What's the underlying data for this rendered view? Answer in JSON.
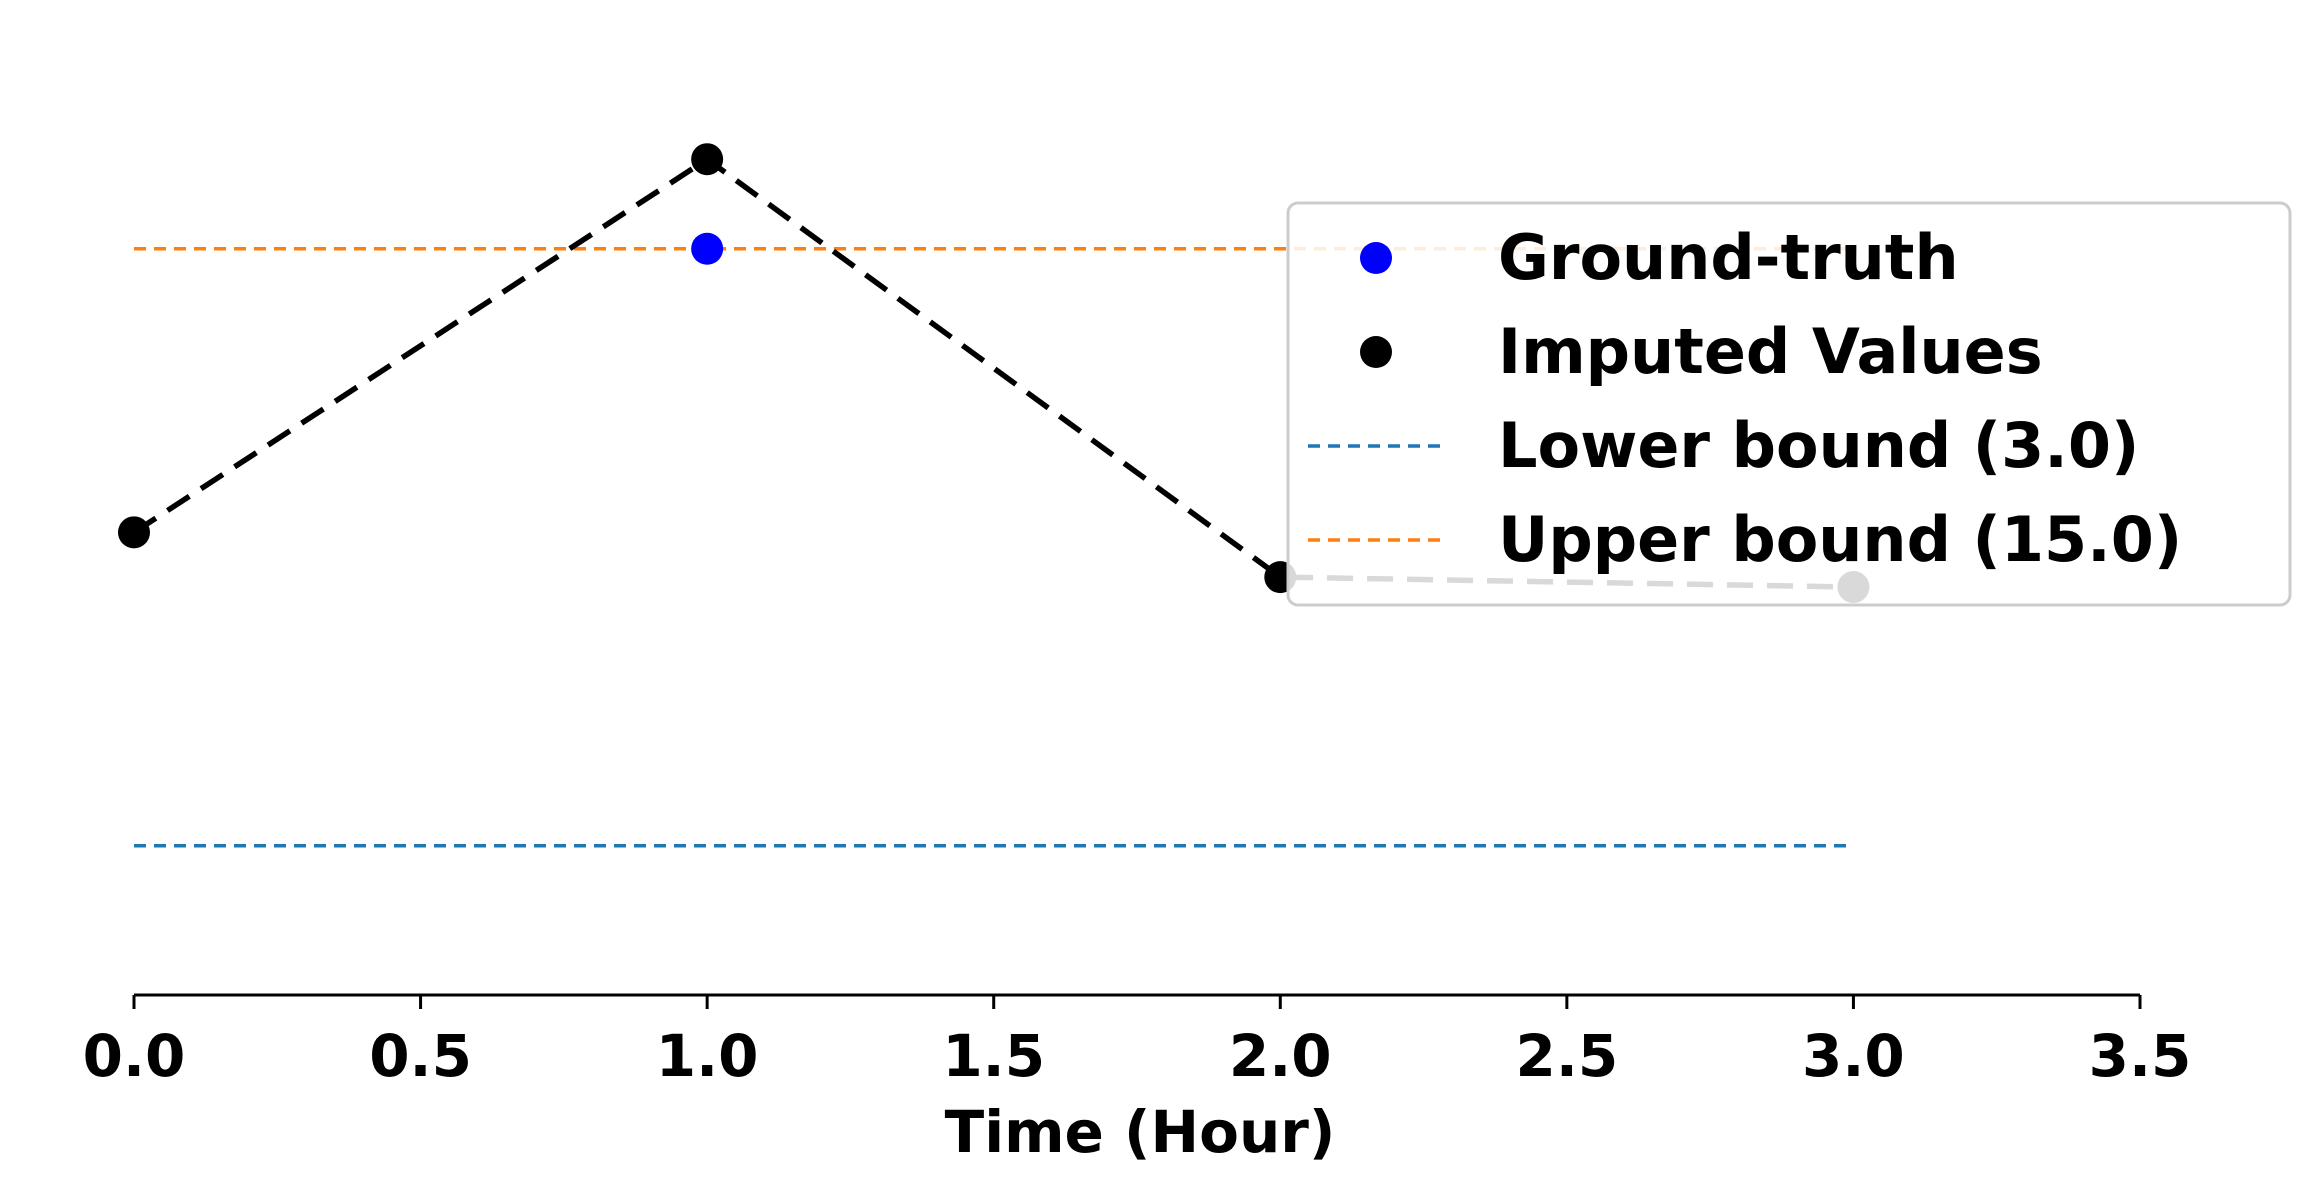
{
  "chart_data": {
    "type": "line",
    "title": "",
    "xlabel": "Time (Hour)",
    "ylabel": "",
    "xlim": [
      0.0,
      3.5
    ],
    "ylim": [
      0.0,
      20.0
    ],
    "x_ticks": [
      0.0,
      0.5,
      1.0,
      1.5,
      2.0,
      2.5,
      3.0,
      3.5
    ],
    "x_tick_labels": [
      "0.0",
      "0.5",
      "1.0",
      "1.5",
      "2.0",
      "2.5",
      "3.0",
      "3.5"
    ],
    "grid": false,
    "legend_position": "right",
    "series": [
      {
        "name": "Ground-truth",
        "kind": "scatter",
        "color": "#0000ff",
        "x": [
          1.0
        ],
        "y": [
          15.0
        ]
      },
      {
        "name": "Imputed Values",
        "kind": "line-marker",
        "color": "#000000",
        "linestyle": "dashed",
        "x": [
          0.0,
          1.0,
          2.0,
          3.0
        ],
        "y": [
          9.3,
          16.8,
          8.4,
          8.2
        ]
      },
      {
        "name": "Lower bound (3.0)",
        "kind": "hline",
        "color": "#1f77b4",
        "linestyle": "dashed",
        "y": 3.0,
        "x_range": [
          0.0,
          3.0
        ]
      },
      {
        "name": "Upper bound (15.0)",
        "kind": "hline",
        "color": "#ff7f0e",
        "linestyle": "dashed",
        "y": 15.0,
        "x_range": [
          0.0,
          3.0
        ]
      }
    ],
    "legend": [
      "Ground-truth",
      "Imputed Values",
      "Lower bound (3.0)",
      "Upper bound (15.0)"
    ]
  }
}
